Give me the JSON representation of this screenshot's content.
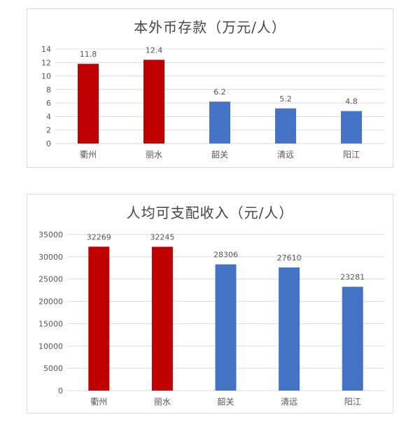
{
  "chart_data": [
    {
      "type": "bar",
      "title": "本外币存款（万元/人）",
      "categories": [
        "衢州",
        "丽水",
        "韶关",
        "清远",
        "阳江"
      ],
      "values": [
        11.8,
        12.4,
        6.2,
        5.2,
        4.8
      ],
      "value_labels": [
        "11.8",
        "12.4",
        "6.2",
        "5.2",
        "4.8"
      ],
      "yticks": [
        0,
        2,
        4,
        6,
        8,
        10,
        12,
        14
      ],
      "ylim": [
        0,
        14
      ],
      "grid": true,
      "bar_colors": [
        "#c00000",
        "#c00000",
        "#4472c4",
        "#4472c4",
        "#4472c4"
      ]
    },
    {
      "type": "bar",
      "title": "人均可支配收入（元/人）",
      "categories": [
        "衢州",
        "丽水",
        "韶关",
        "清远",
        "阳江"
      ],
      "values": [
        32269,
        32245,
        28306,
        27610,
        23281
      ],
      "value_labels": [
        "32269",
        "32245",
        "28306",
        "27610",
        "23281"
      ],
      "yticks": [
        0,
        5000,
        10000,
        15000,
        20000,
        25000,
        30000,
        35000
      ],
      "ylim": [
        0,
        35000
      ],
      "grid": true,
      "bar_colors": [
        "#c00000",
        "#c00000",
        "#4472c4",
        "#4472c4",
        "#4472c4"
      ]
    }
  ]
}
